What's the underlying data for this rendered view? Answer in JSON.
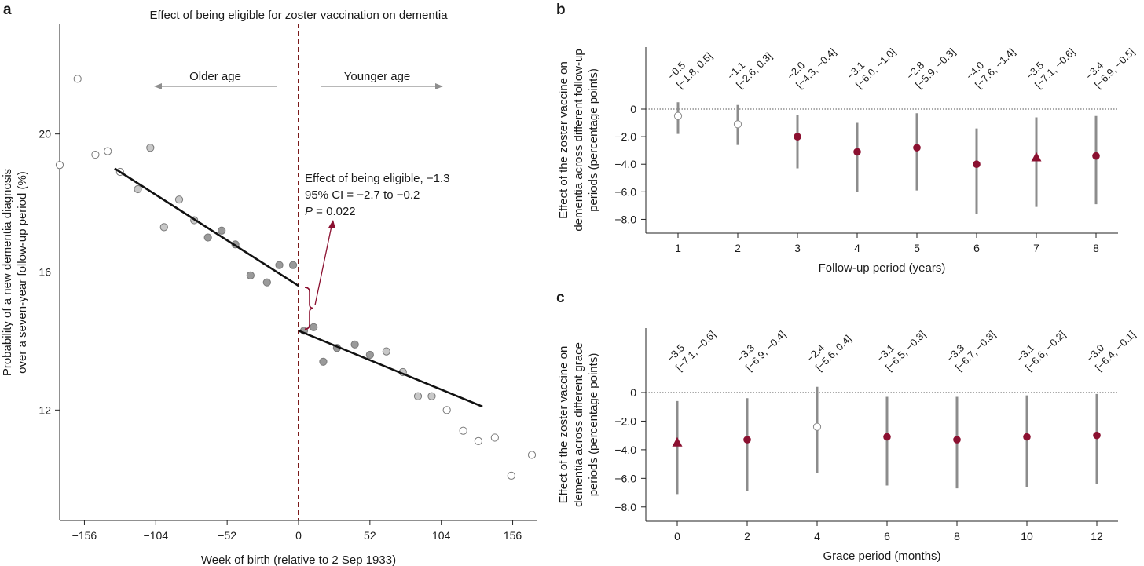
{
  "colors": {
    "accent": "#8b1030",
    "line": "#111111",
    "whisker": "#8c8c8c",
    "cutoff": "#7a1a1a",
    "arrow": "#8e8e8e"
  },
  "panel_letters": [
    "a",
    "b",
    "c"
  ],
  "chart_data": [
    {
      "panel": "a",
      "type": "scatter",
      "title": "Effect of being eligible for zoster vaccination on dementia",
      "xlabel": "Week of birth (relative to 2 Sep 1933)",
      "ylabel_lines": [
        "Probability of a new dementia diagnosis",
        "over a seven-year follow-up period (%)"
      ],
      "xlim": [
        -174,
        174
      ],
      "ylim": [
        8.8,
        23.2
      ],
      "xticks": [
        -156,
        -104,
        -52,
        0,
        52,
        104,
        156
      ],
      "xtick_labels": [
        "−156",
        "−104",
        "−52",
        "0",
        "52",
        "104",
        "156"
      ],
      "yticks": [
        12,
        16,
        20
      ],
      "ytick_labels": [
        "12",
        "16",
        "20"
      ],
      "cutoff_x": 0,
      "direction_labels": {
        "left": "Older age",
        "right": "Younger age"
      },
      "annotation_lines": [
        "Effect of being eligible, −1.3",
        "95% CI = −2.7 to −0.2"
      ],
      "p_label": {
        "italic": "P",
        "rest": " = 0.022"
      },
      "fit_left": {
        "x": [
          -134,
          0
        ],
        "y": [
          19.0,
          15.6
        ]
      },
      "fit_right": {
        "x": [
          0,
          134
        ],
        "y": [
          14.3,
          12.1
        ]
      },
      "points": [
        {
          "x": -174,
          "y": 19.1,
          "tone": "open"
        },
        {
          "x": -161,
          "y": 21.6,
          "tone": "open"
        },
        {
          "x": -148,
          "y": 19.4,
          "tone": "open"
        },
        {
          "x": -139,
          "y": 19.5,
          "tone": "open"
        },
        {
          "x": -130,
          "y": 18.9,
          "tone": "open"
        },
        {
          "x": -117,
          "y": 18.4,
          "tone": "light"
        },
        {
          "x": -108,
          "y": 19.6,
          "tone": "light"
        },
        {
          "x": -98,
          "y": 17.3,
          "tone": "light"
        },
        {
          "x": -87,
          "y": 18.1,
          "tone": "light"
        },
        {
          "x": -76,
          "y": 17.5,
          "tone": "light"
        },
        {
          "x": -66,
          "y": 17.0,
          "tone": "mid"
        },
        {
          "x": -56,
          "y": 17.2,
          "tone": "mid"
        },
        {
          "x": -46,
          "y": 16.8,
          "tone": "mid"
        },
        {
          "x": -35,
          "y": 15.9,
          "tone": "mid"
        },
        {
          "x": -23,
          "y": 15.7,
          "tone": "mid"
        },
        {
          "x": -14,
          "y": 16.2,
          "tone": "mid"
        },
        {
          "x": -4,
          "y": 16.2,
          "tone": "mid"
        },
        {
          "x": 4,
          "y": 14.3,
          "tone": "mid"
        },
        {
          "x": 11,
          "y": 14.4,
          "tone": "mid"
        },
        {
          "x": 18,
          "y": 13.4,
          "tone": "mid"
        },
        {
          "x": 28,
          "y": 13.8,
          "tone": "mid"
        },
        {
          "x": 41,
          "y": 13.9,
          "tone": "mid"
        },
        {
          "x": 52,
          "y": 13.6,
          "tone": "mid"
        },
        {
          "x": 64,
          "y": 13.7,
          "tone": "light"
        },
        {
          "x": 76,
          "y": 13.1,
          "tone": "light"
        },
        {
          "x": 87,
          "y": 12.4,
          "tone": "light"
        },
        {
          "x": 97,
          "y": 12.4,
          "tone": "light"
        },
        {
          "x": 108,
          "y": 12.0,
          "tone": "open"
        },
        {
          "x": 120,
          "y": 11.4,
          "tone": "open"
        },
        {
          "x": 131,
          "y": 11.1,
          "tone": "open"
        },
        {
          "x": 143,
          "y": 11.2,
          "tone": "open"
        },
        {
          "x": 155,
          "y": 10.1,
          "tone": "open"
        },
        {
          "x": 170,
          "y": 10.7,
          "tone": "open"
        }
      ]
    },
    {
      "panel": "b",
      "type": "scatter",
      "subtype": "point-estimates-with-confidence-intervals",
      "xlabel": "Follow-up period (years)",
      "ylabel_lines": [
        "Effect of the zoster vaccine on",
        "dementia across different follow-up",
        "periods (percentage points)"
      ],
      "categories": [
        "1",
        "2",
        "3",
        "4",
        "5",
        "6",
        "7",
        "8"
      ],
      "ylim": [
        -9.0,
        4.5
      ],
      "yticks": [
        0,
        -2,
        -4,
        -6,
        -8
      ],
      "ytick_labels": [
        "0",
        "−2.0",
        "−4.0",
        "−6.0",
        "−8.0"
      ],
      "reference_line_y": 0,
      "estimates": [
        {
          "est": -0.5,
          "lo": -1.8,
          "hi": 0.5,
          "marker": "open",
          "label_est": "−0.5",
          "label_ci": "[−1.8, 0.5]"
        },
        {
          "est": -1.1,
          "lo": -2.6,
          "hi": 0.3,
          "marker": "open",
          "label_est": "−1.1",
          "label_ci": "[−2.6, 0.3]"
        },
        {
          "est": -2.0,
          "lo": -4.3,
          "hi": -0.4,
          "marker": "filled",
          "label_est": "−2.0",
          "label_ci": "[−4.3, −0.4]"
        },
        {
          "est": -3.1,
          "lo": -6.0,
          "hi": -1.0,
          "marker": "filled",
          "label_est": "−3.1",
          "label_ci": "[−6.0, −1.0]"
        },
        {
          "est": -2.8,
          "lo": -5.9,
          "hi": -0.3,
          "marker": "filled",
          "label_est": "−2.8",
          "label_ci": "[−5.9, −0.3]"
        },
        {
          "est": -4.0,
          "lo": -7.6,
          "hi": -1.4,
          "marker": "filled",
          "label_est": "−4.0",
          "label_ci": "[−7.6, −1.4]"
        },
        {
          "est": -3.5,
          "lo": -7.1,
          "hi": -0.6,
          "marker": "triangle",
          "label_est": "−3.5",
          "label_ci": "[−7.1, −0.6]"
        },
        {
          "est": -3.4,
          "lo": -6.9,
          "hi": -0.5,
          "marker": "filled",
          "label_est": "−3.4",
          "label_ci": "[−6.9, −0.5]"
        }
      ]
    },
    {
      "panel": "c",
      "type": "scatter",
      "subtype": "point-estimates-with-confidence-intervals",
      "xlabel": "Grace period (months)",
      "ylabel_lines": [
        "Effect of the zoster vaccine on",
        "dementia across different grace",
        "periods (percentage points)"
      ],
      "categories": [
        "0",
        "2",
        "4",
        "6",
        "8",
        "10",
        "12"
      ],
      "ylim": [
        -9.0,
        4.5
      ],
      "yticks": [
        0,
        -2,
        -4,
        -6,
        -8
      ],
      "ytick_labels": [
        "0",
        "−2.0",
        "−4.0",
        "−6.0",
        "−8.0"
      ],
      "reference_line_y": 0,
      "estimates": [
        {
          "est": -3.5,
          "lo": -7.1,
          "hi": -0.6,
          "marker": "triangle",
          "label_est": "−3.5",
          "label_ci": "[−7.1, −0.6]"
        },
        {
          "est": -3.3,
          "lo": -6.9,
          "hi": -0.4,
          "marker": "filled",
          "label_est": "−3.3",
          "label_ci": "[−6.9, −0.4]"
        },
        {
          "est": -2.4,
          "lo": -5.6,
          "hi": 0.4,
          "marker": "open",
          "label_est": "−2.4",
          "label_ci": "[−5.6, 0.4]"
        },
        {
          "est": -3.1,
          "lo": -6.5,
          "hi": -0.3,
          "marker": "filled",
          "label_est": "−3.1",
          "label_ci": "[−6.5, −0.3]"
        },
        {
          "est": -3.3,
          "lo": -6.7,
          "hi": -0.3,
          "marker": "filled",
          "label_est": "−3.3",
          "label_ci": "[−6.7, −0.3]"
        },
        {
          "est": -3.1,
          "lo": -6.6,
          "hi": -0.2,
          "marker": "filled",
          "label_est": "−3.1",
          "label_ci": "[−6.6, −0.2]"
        },
        {
          "est": -3.0,
          "lo": -6.4,
          "hi": -0.1,
          "marker": "filled",
          "label_est": "−3.0",
          "label_ci": "[−6.4, −0.1]"
        }
      ]
    }
  ]
}
